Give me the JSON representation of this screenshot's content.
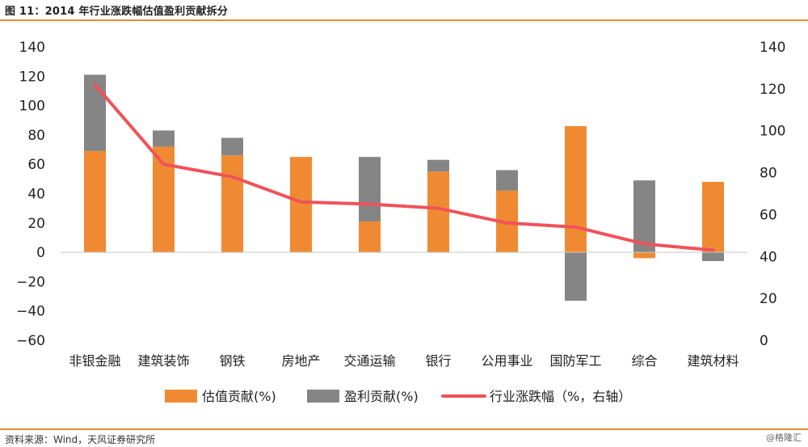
{
  "title": "图 11：2014 年行业涨跌幅估值盈利贡献拆分",
  "source": "资料来源：Wind，天风证券研究所",
  "watermark": "@格隆汇",
  "colors": {
    "valuation": "#f08a32",
    "profit": "#858585",
    "line": "#f0525a",
    "accent": "#f08a32"
  },
  "chart_data": {
    "type": "bar",
    "stacked": true,
    "categories": [
      "非银金融",
      "建筑装饰",
      "钢铁",
      "房地产",
      "交通运输",
      "银行",
      "公用事业",
      "国防军工",
      "综合",
      "建筑材料"
    ],
    "series": [
      {
        "name": "估值贡献(%)",
        "type": "bar",
        "axis": "left",
        "values": [
          69,
          72,
          66,
          65,
          21,
          55,
          42,
          86,
          -4,
          48
        ]
      },
      {
        "name": "盈利贡献(%)",
        "type": "bar",
        "axis": "left",
        "values": [
          52,
          11,
          12,
          0,
          44,
          8,
          14,
          -33,
          49,
          -6
        ]
      },
      {
        "name": "行业涨跌幅（%，右轴）",
        "type": "line",
        "axis": "right",
        "values": [
          122,
          84,
          78,
          66,
          65,
          63,
          56,
          54,
          46,
          43
        ]
      }
    ],
    "yleft": {
      "ylim": [
        -60,
        140
      ],
      "ticks": [
        -60,
        -40,
        -20,
        0,
        20,
        40,
        60,
        80,
        100,
        120,
        140
      ]
    },
    "yright": {
      "ylim": [
        0,
        140
      ],
      "ticks": [
        0,
        20,
        40,
        60,
        80,
        100,
        120,
        140
      ]
    },
    "legend": "bottom",
    "grid": false
  }
}
